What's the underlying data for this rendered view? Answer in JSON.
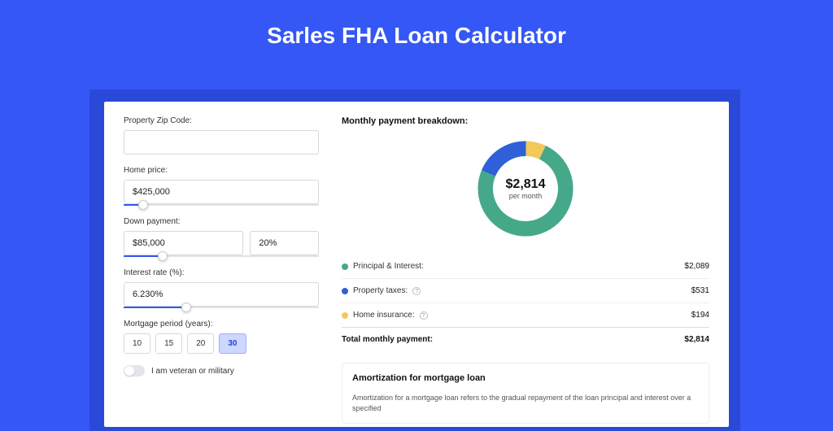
{
  "page_title": "Sarles FHA Loan Calculator",
  "colors": {
    "page_bg": "#3457f5",
    "card_bg": "#ffffff",
    "accent": "#3457f5"
  },
  "form": {
    "zip_label": "Property Zip Code:",
    "zip_value": "",
    "home_price_label": "Home price:",
    "home_price_value": "$425,000",
    "home_price_slider_pct": 10,
    "down_payment_label": "Down payment:",
    "down_payment_value": "$85,000",
    "down_payment_pct": "20%",
    "down_payment_slider_pct": 20,
    "interest_label": "Interest rate (%):",
    "interest_value": "6.230%",
    "interest_slider_pct": 32,
    "period_label": "Mortgage period (years):",
    "periods": [
      "10",
      "15",
      "20",
      "30"
    ],
    "period_active_index": 3,
    "veteran_label": "I am veteran or military",
    "veteran_on": false
  },
  "breakdown": {
    "title": "Monthly payment breakdown:",
    "donut": {
      "value": "$2,814",
      "sub": "per month",
      "segments": [
        {
          "label": "Principal & Interest",
          "value": "$2,089",
          "color": "#45a989",
          "pct": 74.2
        },
        {
          "label": "Property taxes",
          "value": "$531",
          "color": "#3060d8",
          "pct": 18.9
        },
        {
          "label": "Home insurance",
          "value": "$194",
          "color": "#f3c95a",
          "pct": 6.9
        }
      ],
      "thickness": 18
    },
    "legend": [
      {
        "label": "Principal & Interest:",
        "value": "$2,089",
        "color": "#45a989",
        "info": false
      },
      {
        "label": "Property taxes:",
        "value": "$531",
        "color": "#3060d8",
        "info": true
      },
      {
        "label": "Home insurance:",
        "value": "$194",
        "color": "#f3c95a",
        "info": true
      }
    ],
    "total_label": "Total monthly payment:",
    "total_value": "$2,814"
  },
  "amortization": {
    "title": "Amortization for mortgage loan",
    "text": "Amortization for a mortgage loan refers to the gradual repayment of the loan principal and interest over a specified"
  }
}
